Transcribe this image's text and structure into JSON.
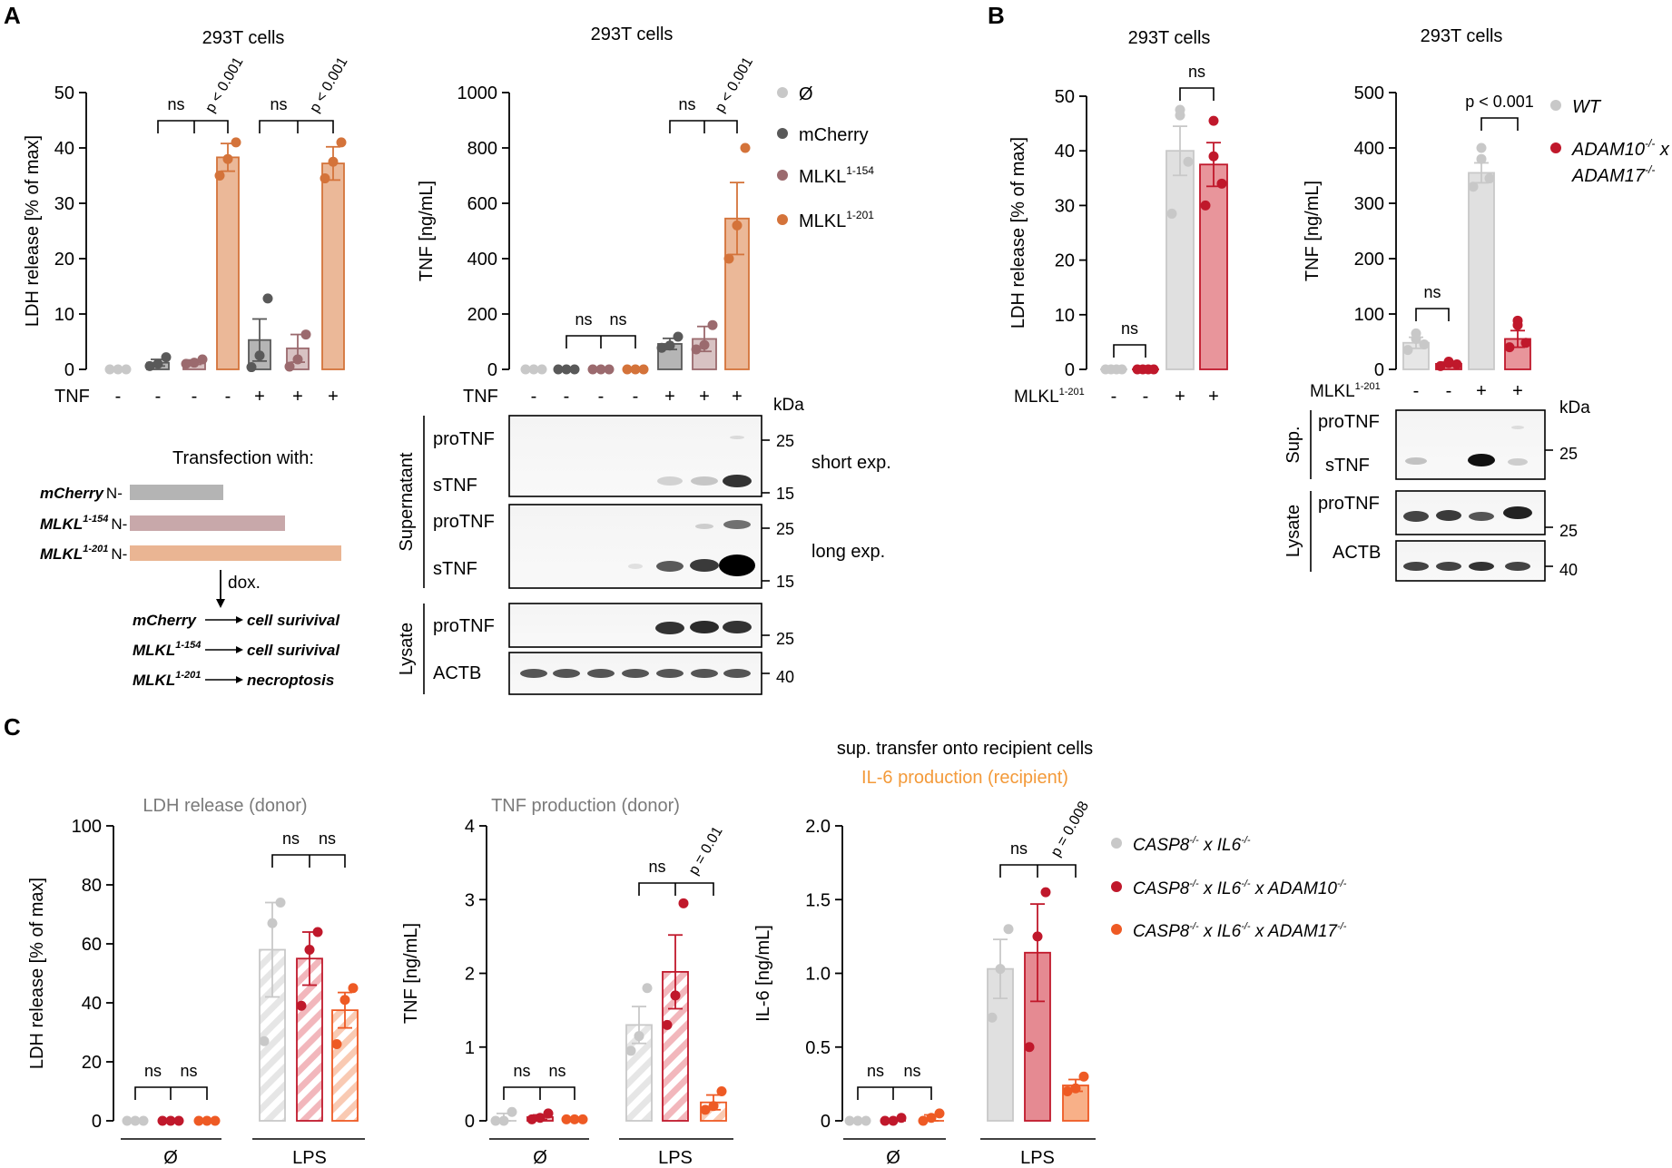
{
  "panels": {
    "A": "A",
    "B": "B",
    "C": "C"
  },
  "colors": {
    "grey_light": "#c8c8c8",
    "grey_dark": "#595959",
    "mauve": "#9b6a6e",
    "mauve_fill": "#d3b7b9",
    "orange_a": "#d4733a",
    "orange_a_fill": "#ebb898",
    "red": "#c0182b",
    "red_fill": "#e89097",
    "orange_c": "#ee5a24",
    "orange_c_fill": "#f7ae8e",
    "title_grey": "#7a7a7a",
    "title_orange": "#f39a3a"
  },
  "panelA": {
    "ldh_title": "293T cells",
    "tnf_title": "293T cells",
    "tnf_row_label": "TNF",
    "minus": "-",
    "plus": "+",
    "stat_ns": "ns",
    "stat_p001": "p < 0.001",
    "legend": [
      {
        "label": "Ø",
        "sup": "",
        "color": "#c8c8c8"
      },
      {
        "label": "mCherry",
        "sup": "",
        "color": "#595959"
      },
      {
        "label": "MLKL",
        "sup": "1-154",
        "color": "#9b6a6e"
      },
      {
        "label": "MLKL",
        "sup": "1-201",
        "color": "#d4733a"
      }
    ],
    "transfection_title": "Transfection with:",
    "constructs": [
      {
        "name": "mCherry",
        "sup": "",
        "suffix": "N-",
        "color": "#b4b4b4"
      },
      {
        "name": "MLKL",
        "sup": "1-154",
        "suffix": "N-",
        "color": "#c8a8aa"
      },
      {
        "name": "MLKL",
        "sup": "1-201",
        "suffix": "N-",
        "color": "#eab593"
      }
    ],
    "dox_label": "dox.",
    "outcomes": [
      {
        "name": "mCherry",
        "sup": "",
        "result": "cell surivival"
      },
      {
        "name": "MLKL",
        "sup": "1-154",
        "result": "cell surivival"
      },
      {
        "name": "MLKL",
        "sup": "1-201",
        "result": "necroptosis"
      }
    ],
    "blot": {
      "kda": "kDa",
      "supernatant": "Supernatant",
      "lysate": "Lysate",
      "protnf": "proTNF",
      "stnf": "sTNF",
      "actb": "ACTB",
      "short_exp": "short exp.",
      "long_exp": "long exp.",
      "mw25": "25",
      "mw15": "15",
      "mw40": "40"
    }
  },
  "panelB": {
    "ldh_title": "293T cells",
    "tnf_title": "293T cells",
    "row_label": "MLKL",
    "row_label_sup": "1-201",
    "stat_ns": "ns",
    "stat_p001": "p < 0.001",
    "legend": [
      {
        "label": "WT",
        "color": "#c8c8c8"
      },
      {
        "label": "ADAM10-/- x",
        "color": "#c0182b"
      },
      {
        "label": "ADAM17-/-",
        "color": ""
      }
    ],
    "legend_wt": "WT",
    "legend_line1_a": "ADAM10",
    "legend_line1_sup": "-/-",
    "legend_line1_b": " x",
    "legend_line2_a": "ADAM17",
    "legend_line2_sup": "-/-",
    "blot": {
      "kda": "kDa",
      "sup": "Sup.",
      "lysate": "Lysate",
      "protnf": "proTNF",
      "stnf": "sTNF",
      "actb": "ACTB",
      "mw25": "25",
      "mw40": "40"
    }
  },
  "panelC": {
    "header1": "sup. transfer onto recipient cells",
    "header2": "IL-6 production (recipient)",
    "titles": [
      "LDH release (donor)",
      "TNF production (donor)"
    ],
    "group_labels": [
      "Ø",
      "LPS"
    ],
    "stat_ns": "ns",
    "stat_p001": "p = 0.01",
    "stat_p0008": "p = 0.008",
    "legend": [
      {
        "text": "CASP8-/- x IL6-/-",
        "color": "#c8c8c8"
      },
      {
        "text": "CASP8-/- x IL6-/- x ADAM10-/-",
        "color": "#c0182b"
      },
      {
        "text": "CASP8-/- x IL6-/- x ADAM17-/-",
        "color": "#ee5a24"
      }
    ]
  },
  "chart_data": [
    {
      "id": "A_ldh",
      "type": "bar",
      "title": "293T cells",
      "ylabel": "LDH release [% of max]",
      "ylim": [
        0,
        50
      ],
      "yticks": [
        0,
        10,
        20,
        30,
        40,
        50
      ],
      "row_label": "TNF",
      "conditions": [
        "-",
        "-",
        "-",
        "-",
        "+",
        "+",
        "+"
      ],
      "series": [
        "Ø",
        "mCherry",
        "MLKL1-154",
        "MLKL1-201",
        "mCherry",
        "MLKL1-154",
        "MLKL1-201"
      ],
      "values": [
        0,
        1.2,
        1.3,
        38.3,
        5.3,
        3.8,
        37.2
      ],
      "errors": [
        0,
        0.6,
        0.4,
        2.5,
        3.8,
        2.5,
        3.0
      ],
      "points": [
        [
          0,
          0,
          0
        ],
        [
          0.6,
          1,
          2.2
        ],
        [
          1,
          1.2,
          1.8
        ],
        [
          35,
          38,
          41
        ],
        [
          0.4,
          2.5,
          12.8
        ],
        [
          0.5,
          1.8,
          6.3
        ],
        [
          34.5,
          37.5,
          41
        ]
      ],
      "stats": [
        "ns",
        "p < 0.001",
        "ns",
        "p < 0.001"
      ]
    },
    {
      "id": "A_tnf",
      "type": "bar",
      "title": "293T cells",
      "ylabel": "TNF [ng/mL]",
      "ylim": [
        0,
        1000
      ],
      "yticks": [
        0,
        200,
        400,
        600,
        800,
        1000
      ],
      "row_label": "TNF",
      "conditions": [
        "-",
        "-",
        "-",
        "-",
        "+",
        "+",
        "+"
      ],
      "values": [
        0,
        0,
        0,
        0,
        92,
        110,
        545
      ],
      "errors": [
        0,
        0,
        0,
        0,
        20,
        45,
        130
      ],
      "points": [
        [
          0,
          0,
          0
        ],
        [
          0,
          0,
          0
        ],
        [
          0,
          0,
          0
        ],
        [
          0,
          0,
          0
        ],
        [
          78,
          86,
          118
        ],
        [
          72,
          88,
          160
        ],
        [
          400,
          520,
          800
        ]
      ],
      "stats": [
        "ns",
        "ns",
        "ns",
        "p < 0.001"
      ]
    },
    {
      "id": "B_ldh",
      "type": "bar",
      "title": "293T cells",
      "ylabel": "LDH release [% of max]",
      "ylim": [
        0,
        50
      ],
      "yticks": [
        0,
        10,
        20,
        30,
        40,
        50
      ],
      "row_label": "MLKL1-201",
      "conditions": [
        "-",
        "-",
        "+",
        "+"
      ],
      "series": [
        "WT",
        "ADAM10-/- x ADAM17-/-",
        "WT",
        "ADAM10-/- x ADAM17-/-"
      ],
      "values": [
        0,
        0,
        40,
        37.5
      ],
      "errors": [
        0,
        0,
        4.5,
        4.0
      ],
      "points": [
        [
          0,
          0,
          0,
          0
        ],
        [
          0,
          0,
          0,
          0
        ],
        [
          28.5,
          38,
          46.5,
          47.5
        ],
        [
          30,
          34,
          39,
          45.5
        ]
      ],
      "stats": [
        "ns",
        "ns"
      ]
    },
    {
      "id": "B_tnf",
      "type": "bar",
      "title": "293T cells",
      "ylabel": "TNF [ng/mL]",
      "ylim": [
        0,
        500
      ],
      "yticks": [
        0,
        100,
        200,
        300,
        400,
        500
      ],
      "row_label": "MLKL1-201",
      "conditions": [
        "-",
        "-",
        "+",
        "+"
      ],
      "values": [
        48,
        10,
        355,
        55
      ],
      "errors": [
        10,
        3,
        18,
        15
      ],
      "points": [
        [
          35,
          45,
          55,
          65
        ],
        [
          6,
          9,
          11,
          14
        ],
        [
          330,
          345,
          380,
          400
        ],
        [
          40,
          48,
          80,
          88
        ]
      ],
      "stats": [
        "ns",
        "p < 0.001"
      ]
    },
    {
      "id": "C_ldh",
      "type": "bar",
      "title": "LDH release (donor)",
      "ylabel": "LDH release [% of max]",
      "ylim": [
        0,
        100
      ],
      "yticks": [
        0,
        20,
        40,
        60,
        80,
        100
      ],
      "groups": [
        "Ø",
        "LPS"
      ],
      "series": [
        "CASP8-/- x IL6-/-",
        "CASP8-/- x IL6-/- x ADAM10-/-",
        "CASP8-/- x IL6-/- x ADAM17-/-"
      ],
      "values": [
        0,
        0,
        0,
        58,
        55,
        37.5
      ],
      "errors": [
        0,
        0,
        0,
        16,
        9,
        6
      ],
      "points": [
        [
          0,
          0,
          0
        ],
        [
          0,
          0,
          0
        ],
        [
          0,
          0,
          0
        ],
        [
          27,
          67,
          74
        ],
        [
          39,
          58,
          64
        ],
        [
          26,
          41,
          45
        ]
      ],
      "stats": [
        "ns",
        "ns",
        "ns",
        "ns"
      ]
    },
    {
      "id": "C_tnf",
      "type": "bar",
      "title": "TNF production (donor)",
      "ylabel": "TNF [ng/mL]",
      "ylim": [
        0,
        4
      ],
      "yticks": [
        0,
        1,
        2,
        3,
        4
      ],
      "groups": [
        "Ø",
        "LPS"
      ],
      "values": [
        0.04,
        0.05,
        0.02,
        1.3,
        2.02,
        0.25
      ],
      "errors": [
        0.06,
        0.03,
        0,
        0.25,
        0.5,
        0.1
      ],
      "points": [
        [
          0,
          0,
          0.12
        ],
        [
          0.02,
          0.04,
          0.1
        ],
        [
          0.02,
          0.02,
          0.02
        ],
        [
          0.95,
          1.15,
          1.8
        ],
        [
          1.3,
          1.7,
          2.95
        ],
        [
          0.15,
          0.2,
          0.4
        ]
      ],
      "stats": [
        "ns",
        "ns",
        "ns",
        "p = 0.01"
      ]
    },
    {
      "id": "C_il6",
      "type": "bar",
      "title": "IL-6 production (recipient)",
      "ylabel": "IL-6 [ng/mL]",
      "ylim": [
        0,
        2.0
      ],
      "yticks": [
        0,
        0.5,
        1.0,
        1.5,
        2.0
      ],
      "groups": [
        "Ø",
        "LPS"
      ],
      "values": [
        0,
        0.01,
        0.02,
        1.03,
        1.14,
        0.24
      ],
      "errors": [
        0,
        0,
        0.02,
        0.2,
        0.33,
        0.04
      ],
      "points": [
        [
          0,
          0,
          0
        ],
        [
          0,
          0,
          0.02
        ],
        [
          0,
          0.02,
          0.05
        ],
        [
          0.7,
          1.03,
          1.3
        ],
        [
          0.5,
          1.25,
          1.55
        ],
        [
          0.2,
          0.22,
          0.3
        ]
      ],
      "stats": [
        "ns",
        "ns",
        "ns",
        "p = 0.008"
      ]
    }
  ]
}
